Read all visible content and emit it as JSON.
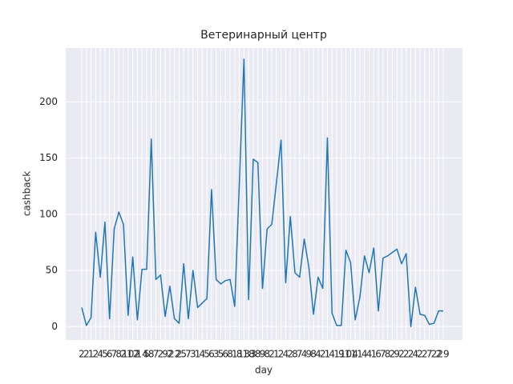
{
  "chart_data": {
    "type": "line",
    "title": "Ветеринарный центр",
    "x_label": "day",
    "y_label": "cashback",
    "categories": [
      "2",
      "2",
      "1",
      "2",
      "4",
      "5",
      "6",
      "7",
      "8",
      "2",
      "10",
      "12",
      "2",
      "14",
      "5",
      "8",
      "7",
      "2",
      "9",
      "2",
      "22",
      "2",
      "5",
      "7",
      "3",
      "1",
      "4",
      "5",
      "6",
      "3",
      "5",
      "6",
      "8",
      "1",
      "8",
      "13",
      "18",
      "3",
      "8",
      "9",
      "8",
      "2",
      "1",
      "2",
      "4",
      "2",
      "8",
      "7",
      "4",
      "9",
      "8",
      "4",
      "2",
      "1",
      "4",
      "1",
      "9",
      "10",
      "11",
      "4",
      "1",
      "4",
      "4",
      "1",
      "6",
      "7",
      "8",
      "2",
      "9",
      "2",
      "2",
      "2",
      "4",
      "2",
      "2",
      "7",
      "2",
      "2",
      "29"
    ],
    "series": [
      {
        "name": "cashback",
        "color": "#1f77b4",
        "values": [
          17,
          1,
          8,
          84,
          44,
          93,
          7,
          87,
          102,
          91,
          10,
          62,
          6,
          51,
          51,
          167,
          42,
          46,
          9,
          36,
          7,
          3,
          56,
          7,
          50,
          17,
          21,
          25,
          122,
          42,
          38,
          41,
          42,
          18,
          128,
          238,
          24,
          149,
          146,
          34,
          87,
          91,
          128,
          166,
          39,
          98,
          48,
          44,
          78,
          53,
          11,
          44,
          34,
          168,
          12,
          1,
          1,
          68,
          57,
          6,
          26,
          63,
          48,
          70,
          14,
          61,
          63,
          66,
          69,
          56,
          65,
          0,
          35,
          11,
          10,
          2,
          3,
          14,
          14
        ]
      }
    ],
    "ylim": [
      -11.9,
      248
    ],
    "yticks": [
      0,
      50,
      100,
      150,
      200
    ],
    "grid": true
  }
}
